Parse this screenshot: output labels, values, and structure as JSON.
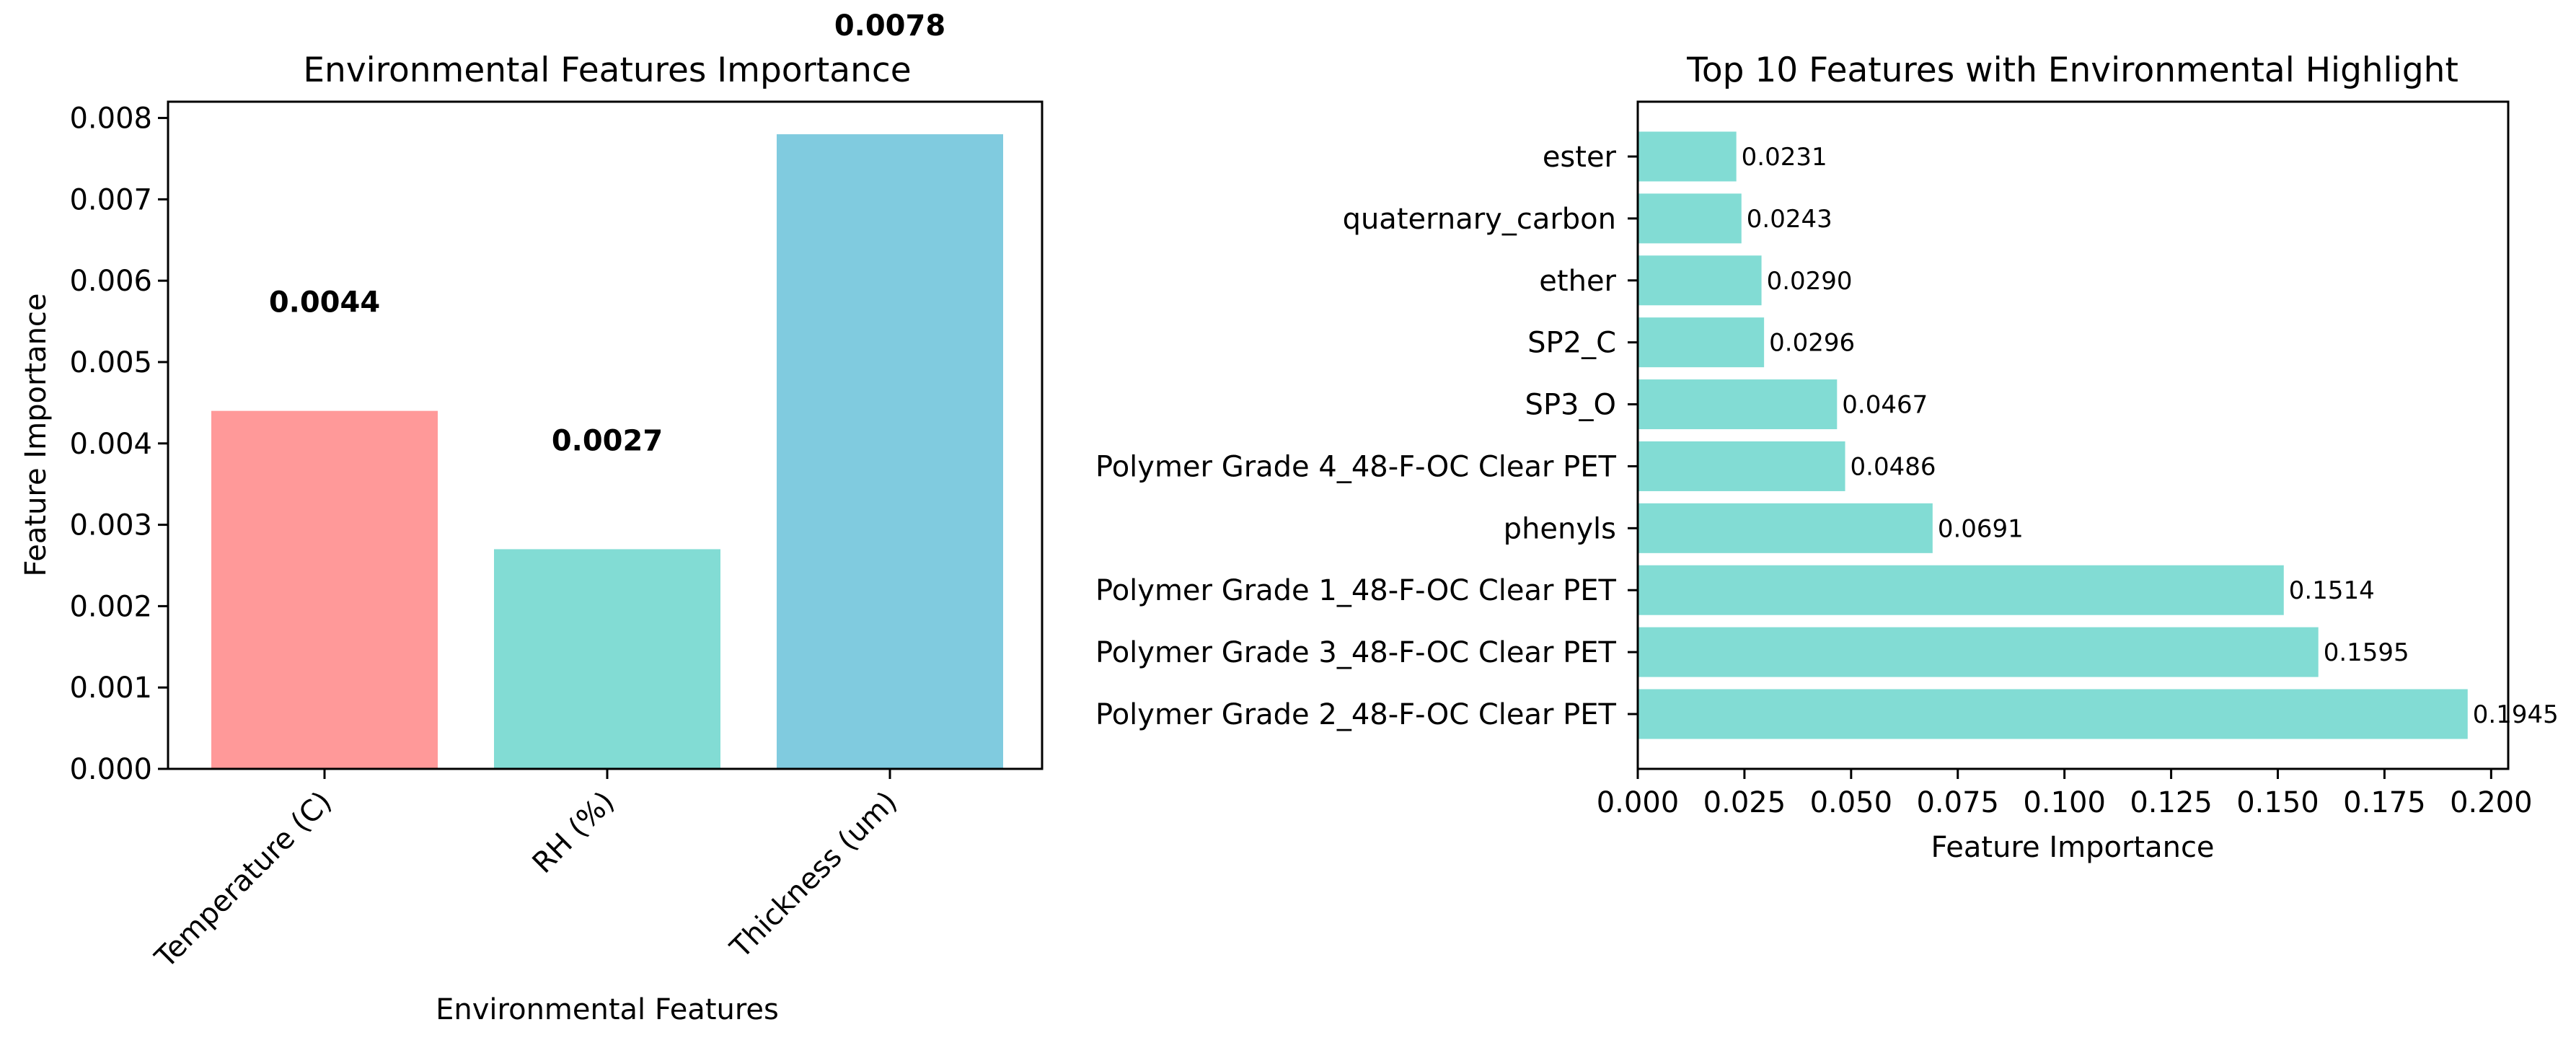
{
  "chart_data": [
    {
      "type": "bar",
      "title": "Environmental Features Importance",
      "xlabel": "Environmental Features",
      "ylabel": "Feature Importance",
      "categories": [
        "Temperature (C)",
        "RH (%)",
        "Thickness (um)"
      ],
      "values": [
        0.0044,
        0.0027,
        0.0078
      ],
      "value_labels": [
        "0.0044",
        "0.0027",
        "0.0078"
      ],
      "colors": [
        "#ff9999",
        "#82dcd4",
        "#80cbdf"
      ],
      "ylim": [
        0,
        0.0082
      ],
      "yticks": [
        0,
        0.001,
        0.002,
        0.003,
        0.004,
        0.005,
        0.006,
        0.007,
        0.008
      ],
      "ytick_labels": [
        "0.000",
        "0.001",
        "0.002",
        "0.003",
        "0.004",
        "0.005",
        "0.006",
        "0.007",
        "0.008"
      ],
      "grid": false,
      "legend": "none"
    },
    {
      "type": "bar",
      "orientation": "horizontal",
      "title": "Top 10 Features with Environmental Highlight",
      "xlabel": "Feature Importance",
      "ylabel": "",
      "categories": [
        "ester",
        "quaternary_carbon",
        "ether",
        "SP2_C",
        "SP3_O",
        "Polymer Grade 4_48-F-OC Clear PET",
        "phenyls",
        "Polymer Grade 1_48-F-OC Clear PET",
        "Polymer Grade 3_48-F-OC Clear PET",
        "Polymer Grade 2_48-F-OC Clear PET"
      ],
      "values": [
        0.0231,
        0.0243,
        0.029,
        0.0296,
        0.0467,
        0.0486,
        0.0691,
        0.1514,
        0.1595,
        0.1945
      ],
      "value_labels": [
        "0.0231",
        "0.0243",
        "0.0290",
        "0.0296",
        "0.0467",
        "0.0486",
        "0.0691",
        "0.1514",
        "0.1595",
        "0.1945"
      ],
      "color": "#82dcd4",
      "xlim": [
        0,
        0.204
      ],
      "xticks": [
        0,
        0.025,
        0.05,
        0.075,
        0.1,
        0.125,
        0.15,
        0.175,
        0.2
      ],
      "xtick_labels": [
        "0.000",
        "0.025",
        "0.050",
        "0.075",
        "0.100",
        "0.125",
        "0.150",
        "0.175",
        "0.200"
      ],
      "grid": false,
      "legend": "none"
    }
  ]
}
